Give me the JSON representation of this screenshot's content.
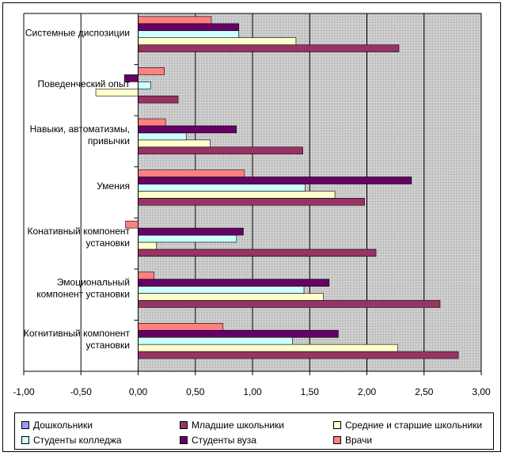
{
  "chart_data": {
    "type": "bar",
    "orientation": "horizontal",
    "categories": [
      "Системные диспозиции",
      "Поведенческий опыт",
      "Навыки, автоматизмы, привычки",
      "Умения",
      "Конативный компонент установки",
      "Эмоциональный компонент установки",
      "Когнитивный компонент установки"
    ],
    "category_lines": [
      [
        "Системные диспозиции"
      ],
      [
        "Поведенческий опыт"
      ],
      [
        "Навыки, автоматизмы,",
        "привычки"
      ],
      [
        "Умения"
      ],
      [
        "Конативный компонент",
        "установки"
      ],
      [
        "Эмоциональный",
        "компонент установки"
      ],
      [
        "Когнитивный компонент",
        "установки"
      ]
    ],
    "series": [
      {
        "name": "Дошкольники",
        "color": "#9999ff",
        "values": [
          0,
          0,
          0,
          0,
          0,
          0,
          0
        ]
      },
      {
        "name": "Младшие школьники",
        "color": "#993366",
        "values": [
          2.28,
          0.35,
          1.44,
          1.98,
          2.08,
          2.64,
          2.8
        ]
      },
      {
        "name": "Средние и старшие школьники",
        "color": "#ffffcc",
        "values": [
          1.38,
          -0.37,
          0.63,
          1.72,
          0.16,
          1.62,
          2.27
        ]
      },
      {
        "name": "Студенты колледжа",
        "color": "#ccffff",
        "values": [
          0.88,
          0.11,
          0.42,
          1.46,
          0.86,
          1.45,
          1.35
        ]
      },
      {
        "name": "Студенты вуза",
        "color": "#660066",
        "values": [
          0.88,
          -0.12,
          0.86,
          2.39,
          0.92,
          1.67,
          1.75
        ]
      },
      {
        "name": "Врачи",
        "color": "#ff8080",
        "values": [
          0.64,
          0.23,
          0.24,
          0.93,
          -0.11,
          0.14,
          0.74
        ]
      }
    ],
    "xlim": [
      -1.0,
      3.0
    ],
    "xticks": [
      -1.0,
      -0.5,
      0.0,
      0.5,
      1.0,
      1.5,
      2.0,
      2.5,
      3.0
    ],
    "xtick_labels": [
      "-1,00",
      "-0,50",
      "0,00",
      "0,50",
      "1,00",
      "1,50",
      "2,00",
      "2,50",
      "3,00"
    ],
    "grid": true,
    "plot_background": "#c0c0c0",
    "legend_position": "bottom",
    "title": "",
    "xlabel": "",
    "ylabel": ""
  }
}
